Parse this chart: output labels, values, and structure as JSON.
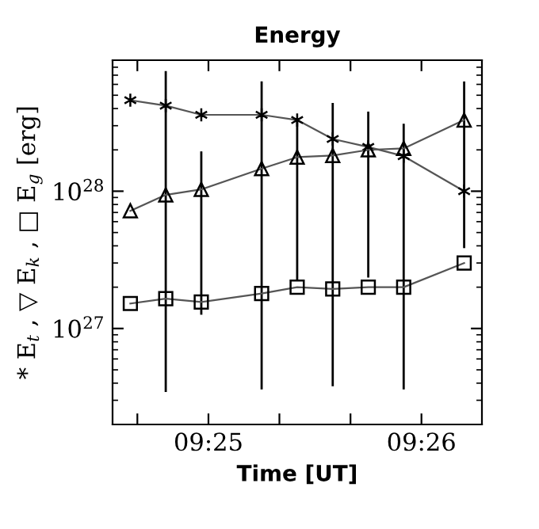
{
  "chart_data": {
    "type": "line",
    "title": "Energy",
    "xlabel": "Time [UT]",
    "ylabel": "* E$_{t}$ , ▽ E$_{k}$ , □ E$_{g}$ [erg]",
    "x": [
      9.41056,
      9.41333,
      9.41611,
      9.42083,
      9.42361,
      9.42639,
      9.42917,
      9.43194,
      9.43667
    ],
    "series": [
      {
        "color": "#000000",
        "marker": "cross",
        "values": [
          4.6e+28,
          4.2e+28,
          3.6e+28,
          3.6e+28,
          3.3e+28,
          2.4e+28,
          2.1e+28,
          1.8e+28,
          1e+28
        ]
      },
      {
        "color": "#000000",
        "marker": "triangle",
        "values": [
          7.2e+27,
          9.4e+27,
          1.03e+28,
          1.46e+28,
          1.77e+28,
          1.82e+28,
          2e+28,
          2.05e+28,
          3.3e+28
        ],
        "errors": [
          null,
          [
            3.45e+26,
            7.5e+28
          ],
          [
            1.26e+27,
            1.95e+28
          ],
          [
            3.6e+26,
            6.3e+28
          ],
          [
            2.25e+27,
            3.2e+28
          ],
          [
            3.8e+26,
            4.4e+28
          ],
          [
            2.35e+27,
            3.8e+28
          ],
          [
            3.6e+26,
            3.1e+28
          ],
          [
            3.85e+27,
            6.3e+28
          ]
        ]
      },
      {
        "color": "#000000",
        "marker": "square",
        "values": [
          1.52e+27,
          1.65e+27,
          1.56e+27,
          1.8e+27,
          2e+27,
          1.94e+27,
          2e+27,
          2e+27,
          3e+27
        ]
      }
    ],
    "log": "y",
    "ylim": [
      2e+26,
      9e+28
    ],
    "yticks": [
      {
        "value": 1e+27,
        "label": "10$^{27}$"
      },
      {
        "value": 1e+28,
        "label": "10$^{28}$"
      }
    ],
    "xlim": [
      9.40917,
      9.43806
    ],
    "xticks": [
      {
        "value": 9.41111,
        "label": null
      },
      {
        "value": 9.41667,
        "label": "09:25"
      },
      {
        "value": 9.42222,
        "label": null
      },
      {
        "value": 9.42778,
        "label": null
      },
      {
        "value": 9.43333,
        "label": "09:26"
      }
    ],
    "grid": false,
    "legend": false
  }
}
